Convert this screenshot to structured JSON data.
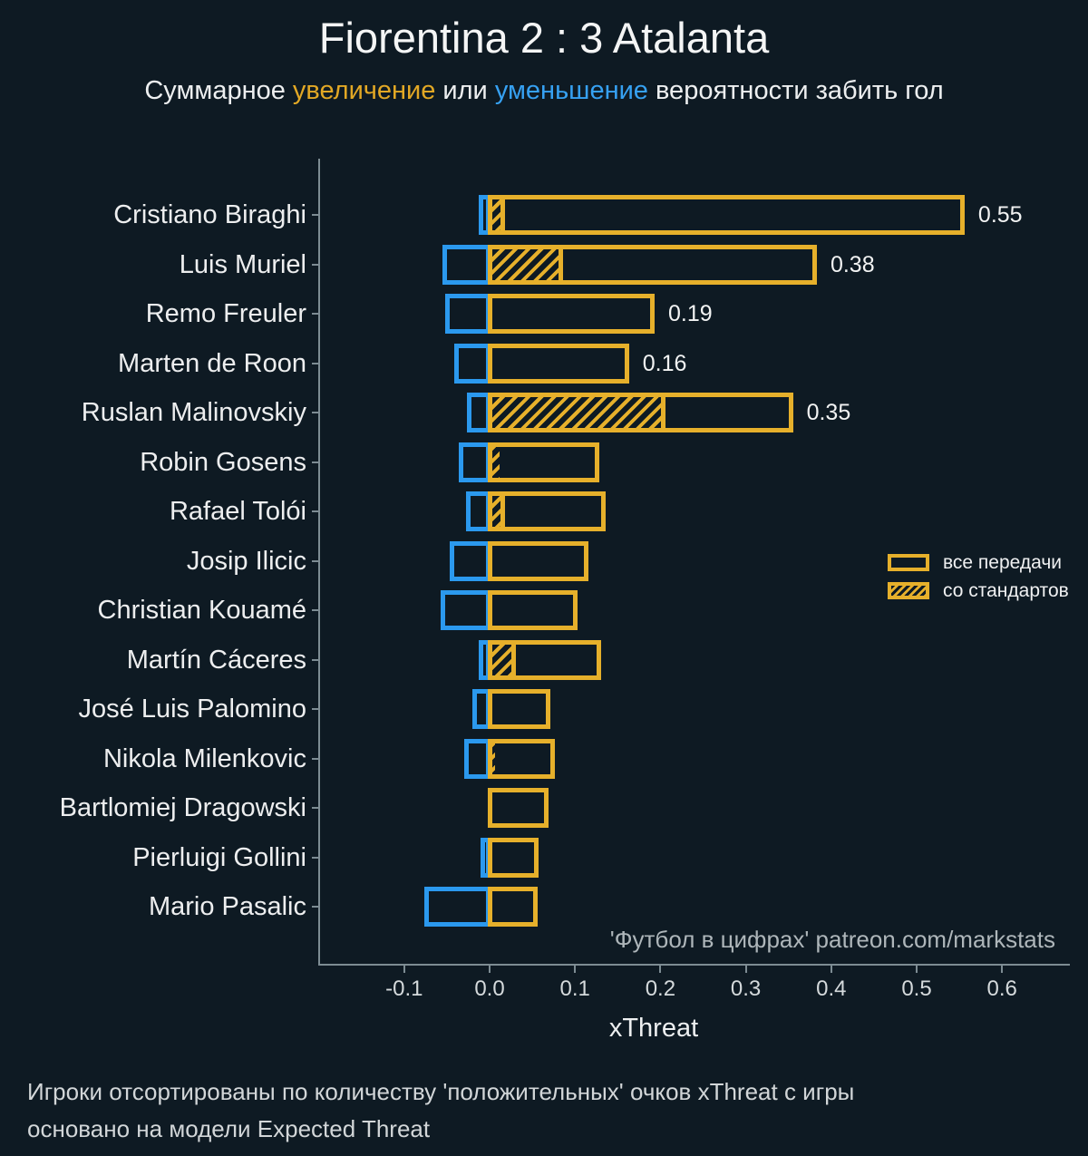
{
  "header": {
    "title": "Fiorentina 2 : 3 Atalanta",
    "subtitle_part1": "Суммарное ",
    "subtitle_increase": "увеличение",
    "subtitle_part2": " или ",
    "subtitle_decrease": "уменьшение",
    "subtitle_part3": " вероятности забить гол"
  },
  "colors": {
    "background": "#0E1A23",
    "positive": "#E6B02B",
    "negative": "#2B99EE",
    "text": "#F2F3F3",
    "muted_text": "#AEB6BA",
    "axis": "#7D8C93"
  },
  "watermark": "'Футбол в цифрах' patreon.com/markstats",
  "footer": {
    "line1": "Игроки отсортированы по количеству 'положительных' очков xThreat с игры",
    "line2": "основано на модели Expected Threat"
  },
  "chart_data": {
    "type": "bar",
    "orientation": "horizontal",
    "title": "Fiorentina 2 : 3 Atalanta",
    "xlabel": "xThreat",
    "xlim": [
      -0.2,
      0.69
    ],
    "grid": false,
    "legend_position": "right-middle",
    "legend": [
      {
        "label": "все передачи",
        "style": "outlined"
      },
      {
        "label": "со стандартов",
        "style": "hatched"
      }
    ],
    "xticks": [
      {
        "value": -0.1,
        "label": "-0.1"
      },
      {
        "value": 0.0,
        "label": "0.0"
      },
      {
        "value": 0.1,
        "label": "0.1"
      },
      {
        "value": 0.2,
        "label": "0.2"
      },
      {
        "value": 0.3,
        "label": "0.3"
      },
      {
        "value": 0.4,
        "label": "0.4"
      },
      {
        "value": 0.5,
        "label": "0.5"
      },
      {
        "value": 0.6,
        "label": "0.6"
      }
    ],
    "players": [
      {
        "name": "Cristiano Biraghi",
        "positive_total": 0.553,
        "set_piece": 0.015,
        "negative": -0.008,
        "label": "0.55"
      },
      {
        "name": "Luis Muriel",
        "positive_total": 0.38,
        "set_piece": 0.083,
        "negative": -0.051,
        "label": "0.38"
      },
      {
        "name": "Remo Freuler",
        "positive_total": 0.19,
        "set_piece": 0,
        "negative": -0.048,
        "label": "0.19"
      },
      {
        "name": "Marten de Roon",
        "positive_total": 0.16,
        "set_piece": 0,
        "negative": -0.037,
        "label": "0.16"
      },
      {
        "name": "Ruslan Malinovskiy",
        "positive_total": 0.352,
        "set_piece": 0.203,
        "negative": -0.022,
        "label": "0.35"
      },
      {
        "name": "Robin Gosens",
        "positive_total": 0.125,
        "set_piece": 0.008,
        "negative": -0.032,
        "label": null
      },
      {
        "name": "Rafael Tolói",
        "positive_total": 0.133,
        "set_piece": 0.015,
        "negative": -0.023,
        "label": null
      },
      {
        "name": "Josip Ilicic",
        "positive_total": 0.112,
        "set_piece": 0,
        "negative": -0.042,
        "label": null
      },
      {
        "name": "Christian Kouamé",
        "positive_total": 0.1,
        "set_piece": 0,
        "negative": -0.053,
        "label": null
      },
      {
        "name": "Martín Cáceres",
        "positive_total": 0.127,
        "set_piece": 0.028,
        "negative": -0.009,
        "label": null
      },
      {
        "name": "José Luis Palomino",
        "positive_total": 0.068,
        "set_piece": 0,
        "negative": -0.016,
        "label": null
      },
      {
        "name": "Nikola Milenkovic",
        "positive_total": 0.073,
        "set_piece": 0.003,
        "negative": -0.026,
        "label": null
      },
      {
        "name": "Bartlomiej Dragowski",
        "positive_total": 0.066,
        "set_piece": 0,
        "negative": 0,
        "label": null
      },
      {
        "name": "Pierluigi Gollini",
        "positive_total": 0.054,
        "set_piece": 0,
        "negative": -0.006,
        "label": null
      },
      {
        "name": "Mario Pasalic",
        "positive_total": 0.053,
        "set_piece": 0,
        "negative": -0.072,
        "label": null
      }
    ]
  }
}
